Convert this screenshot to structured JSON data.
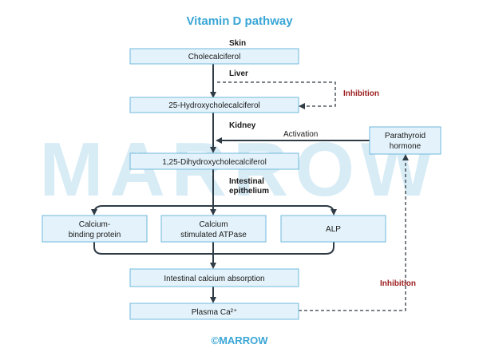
{
  "title": "Vitamin D pathway",
  "watermark": "MARROW",
  "footer": "©MARROW",
  "regions": {
    "skin": "Skin",
    "liver": "Liver",
    "kidney": "Kidney",
    "intestinal_line1": "Intestinal",
    "intestinal_line2": "epithelium"
  },
  "boxes": {
    "cholecalciferol": [
      "Cholecalciferol"
    ],
    "hydroxy": [
      "25-Hydroxycholecalciferol"
    ],
    "dihydroxy": [
      "1,25-Dihydroxycholecalciferol"
    ],
    "calcium_binding_protein": [
      "Calcium-",
      "binding protein"
    ],
    "calcium_atpase": [
      "Calcium",
      "stimulated ATPase"
    ],
    "alp": [
      "ALP"
    ],
    "absorption": [
      "Intestinal calcium absorption"
    ],
    "plasma_ca": [
      "Plasma Ca²⁺"
    ],
    "pth": [
      "Parathyroid",
      "hormone"
    ]
  },
  "labels": {
    "activation": "Activation",
    "inhibition_top": "Inhibition",
    "inhibition_bottom": "Inhibition"
  },
  "colors": {
    "title": "#3aa6d6",
    "box_fill": "#e4f3fb",
    "box_border": "#6fb8dc",
    "arrow": "#2f3b45",
    "inhibition": "#9b1c1c",
    "watermark": "#d8ecf6"
  }
}
